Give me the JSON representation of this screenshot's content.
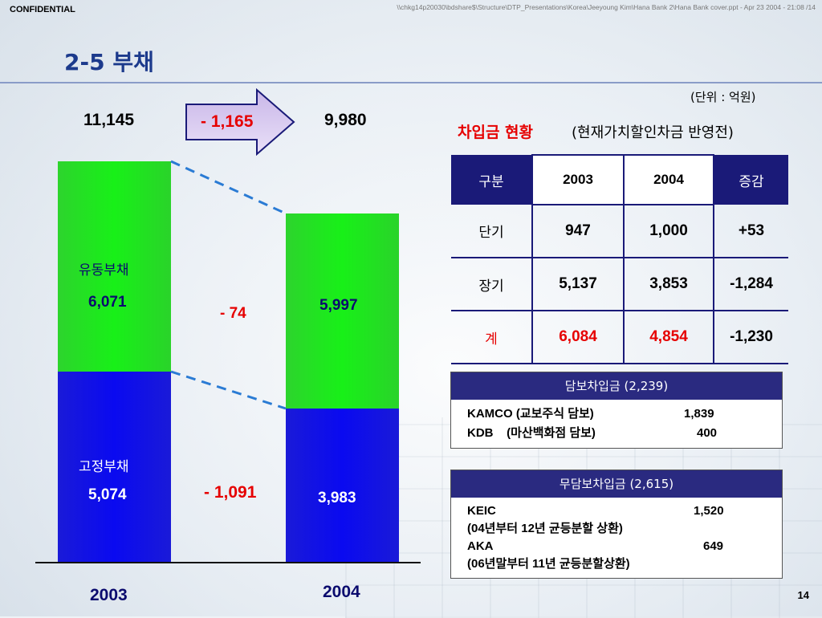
{
  "header": {
    "confidential": "CONFIDENTIAL",
    "filepath": "\\\\chkg14p20030\\bdshare$\\Structure\\DTP_Presentations\\Korea\\Jeeyoung Kim\\Hana Bank 2\\Hana Bank cover.ppt - Apr 23 2004 - 21:08 /14",
    "title": "2-5 부채"
  },
  "chart": {
    "total_2003": "11,145",
    "total_2004": "9,980",
    "total_change": "- 1,165",
    "current_label": "유동부채",
    "current_2003": "6,071",
    "current_2004": "5,997",
    "current_change": "- 74",
    "fixed_label": "고정부채",
    "fixed_2003": "5,074",
    "fixed_2004": "3,983",
    "fixed_change": "- 1,091",
    "year_2003": "2003",
    "year_2004": "2004"
  },
  "chart_data": {
    "type": "bar",
    "stacked": true,
    "categories": [
      "2003",
      "2004"
    ],
    "series": [
      {
        "name": "고정부채",
        "values": [
          5074,
          3983
        ],
        "color": "#1010e8"
      },
      {
        "name": "유동부채",
        "values": [
          6071,
          5997
        ],
        "color": "#20e620"
      }
    ],
    "totals": [
      11145,
      9980
    ]
  },
  "borrowings": {
    "unit": "(단위 : 억원)",
    "title": "차입금 현황",
    "subtitle": "(현재가치할인차금 반영전)",
    "columns": [
      "구분",
      "2003",
      "2004",
      "증감"
    ],
    "rows": [
      [
        "단기",
        "947",
        "1,000",
        "+53"
      ],
      [
        "장기",
        "5,137",
        "3,853",
        "-1,284"
      ],
      [
        "계",
        "6,084",
        "4,854",
        "-1,230"
      ]
    ]
  },
  "secured": {
    "header": "담보차입금 (2,239)",
    "items": [
      {
        "name": "KAMCO (교보주식 담보)",
        "value": "1,839"
      },
      {
        "name": "KDB    (마산백화점 담보)",
        "value": "400"
      }
    ]
  },
  "unsecured": {
    "header": "무담보차입금 (2,615)",
    "items": [
      {
        "name": "KEIC",
        "value": "1,520",
        "note": "(04년부터 12년 균등분할 상환)"
      },
      {
        "name": "AKA",
        "value": "649",
        "note": "(06년말부터 11년 균등분할상환)"
      }
    ]
  },
  "footer": {
    "page": "14"
  },
  "colors": {
    "title": "#1c3a8c",
    "navy": "#1a1a78",
    "red": "#e60000",
    "green": "#20e620",
    "blue": "#1010e8"
  }
}
